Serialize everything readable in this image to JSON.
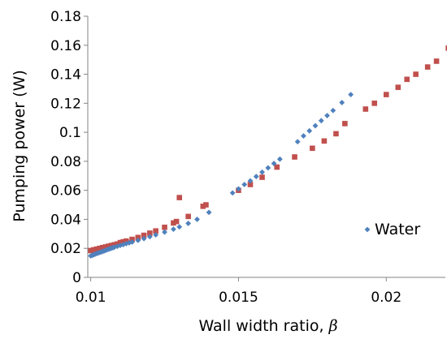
{
  "chart_data": {
    "type": "scatter",
    "title": "",
    "xlabel": "Wall width ratio, ",
    "xlabel_symbol": "β",
    "ylabel": "Pumping power (W)",
    "xlim": [
      0.0099,
      0.022
    ],
    "ylim": [
      0,
      0.18
    ],
    "xticks": [
      0.01,
      0.015,
      0.02
    ],
    "xtick_labels": [
      "0.01",
      "0.015",
      "0.02"
    ],
    "yticks": [
      0,
      0.02,
      0.04,
      0.06,
      0.08,
      0.1,
      0.12,
      0.14,
      0.16,
      0.18
    ],
    "ytick_labels": [
      "0",
      "0.02",
      "0.04",
      "0.06",
      "0.08",
      "0.1",
      "0.12",
      "0.14",
      "0.16",
      "0.18"
    ],
    "grid": false,
    "legend_position": "bottom-right",
    "legend_label": "Water",
    "series": [
      {
        "name": "Water",
        "marker": "diamond",
        "color": "#4f81bd",
        "x": [
          0.01,
          0.01005,
          0.0101,
          0.01015,
          0.0102,
          0.01025,
          0.0103,
          0.01035,
          0.0104,
          0.01045,
          0.0105,
          0.01055,
          0.0106,
          0.01065,
          0.0107,
          0.01075,
          0.0108,
          0.0109,
          0.011,
          0.0111,
          0.0112,
          0.0113,
          0.0114,
          0.0116,
          0.0118,
          0.012,
          0.0122,
          0.0125,
          0.0128,
          0.013,
          0.0133,
          0.0136,
          0.014,
          0.0148,
          0.015,
          0.0152,
          0.0154,
          0.0156,
          0.0158,
          0.016,
          0.0162,
          0.0164,
          0.017,
          0.0172,
          0.0174,
          0.0176,
          0.0178,
          0.018,
          0.0182,
          0.0185,
          0.0188
        ],
        "y": [
          0.0148,
          0.0152,
          0.0156,
          0.016,
          0.0164,
          0.0168,
          0.0171,
          0.0175,
          0.0178,
          0.0182,
          0.0186,
          0.019,
          0.0194,
          0.0197,
          0.0201,
          0.0204,
          0.0208,
          0.0214,
          0.022,
          0.0226,
          0.0232,
          0.0238,
          0.0243,
          0.0255,
          0.0267,
          0.028,
          0.0293,
          0.0312,
          0.0332,
          0.0348,
          0.0372,
          0.04,
          0.0448,
          0.0582,
          0.061,
          0.064,
          0.0665,
          0.0695,
          0.0725,
          0.0755,
          0.0785,
          0.0815,
          0.0935,
          0.0975,
          0.101,
          0.1045,
          0.108,
          0.1115,
          0.115,
          0.1205,
          0.126
        ]
      },
      {
        "name": "",
        "marker": "square",
        "color": "#c0504d",
        "x": [
          0.01,
          0.0101,
          0.0102,
          0.0103,
          0.0104,
          0.0105,
          0.0106,
          0.0107,
          0.0108,
          0.0109,
          0.011,
          0.0111,
          0.0112,
          0.0114,
          0.0116,
          0.0118,
          0.012,
          0.0122,
          0.0125,
          0.0128,
          0.0129,
          0.013,
          0.0133,
          0.0138,
          0.0139,
          0.015,
          0.0154,
          0.0158,
          0.0163,
          0.0169,
          0.0175,
          0.0179,
          0.0183,
          0.0186,
          0.0193,
          0.0196,
          0.02,
          0.0204,
          0.0207,
          0.021,
          0.0214,
          0.0217,
          0.0221
        ],
        "y": [
          0.0185,
          0.019,
          0.0195,
          0.02,
          0.0205,
          0.021,
          0.0215,
          0.022,
          0.0225,
          0.023,
          0.024,
          0.0245,
          0.025,
          0.0262,
          0.0275,
          0.029,
          0.0305,
          0.032,
          0.0345,
          0.0375,
          0.0385,
          0.055,
          0.042,
          0.049,
          0.05,
          0.06,
          0.064,
          0.069,
          0.076,
          0.083,
          0.089,
          0.094,
          0.099,
          0.106,
          0.116,
          0.12,
          0.126,
          0.131,
          0.1365,
          0.14,
          0.145,
          0.149,
          0.158
        ]
      }
    ]
  }
}
